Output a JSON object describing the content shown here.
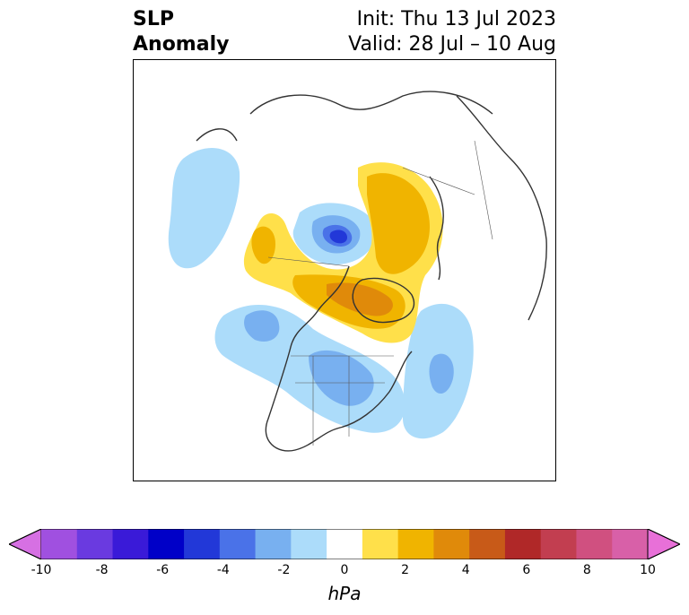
{
  "title": {
    "left_line1": "SLP",
    "left_line2": "Anomaly",
    "right_line1": "Init: Thu 13 Jul 2023",
    "right_line2": "Valid: 28 Jul – 10 Aug"
  },
  "colorbar": {
    "units": "hPa",
    "min": -10,
    "max": 10,
    "extend": "both",
    "ticks": [
      "-10",
      "-8",
      "-6",
      "-4",
      "-2",
      "0",
      "2",
      "4",
      "6",
      "8",
      "10"
    ],
    "colors": [
      "#d670e3",
      "#a050e0",
      "#6a3ae0",
      "#3a1ad8",
      "#0000c8",
      "#2238d8",
      "#4a72e8",
      "#78b0f0",
      "#acdcfa",
      "#ffffff",
      "#ffe04a",
      "#f0b400",
      "#e08a0a",
      "#c85a18",
      "#b02828",
      "#c23e50",
      "#d05080",
      "#d860a8",
      "#e870d8"
    ]
  },
  "map": {
    "projection": "north-polar-stereographic",
    "region": "Northern Hemisphere (North America centered)"
  }
}
